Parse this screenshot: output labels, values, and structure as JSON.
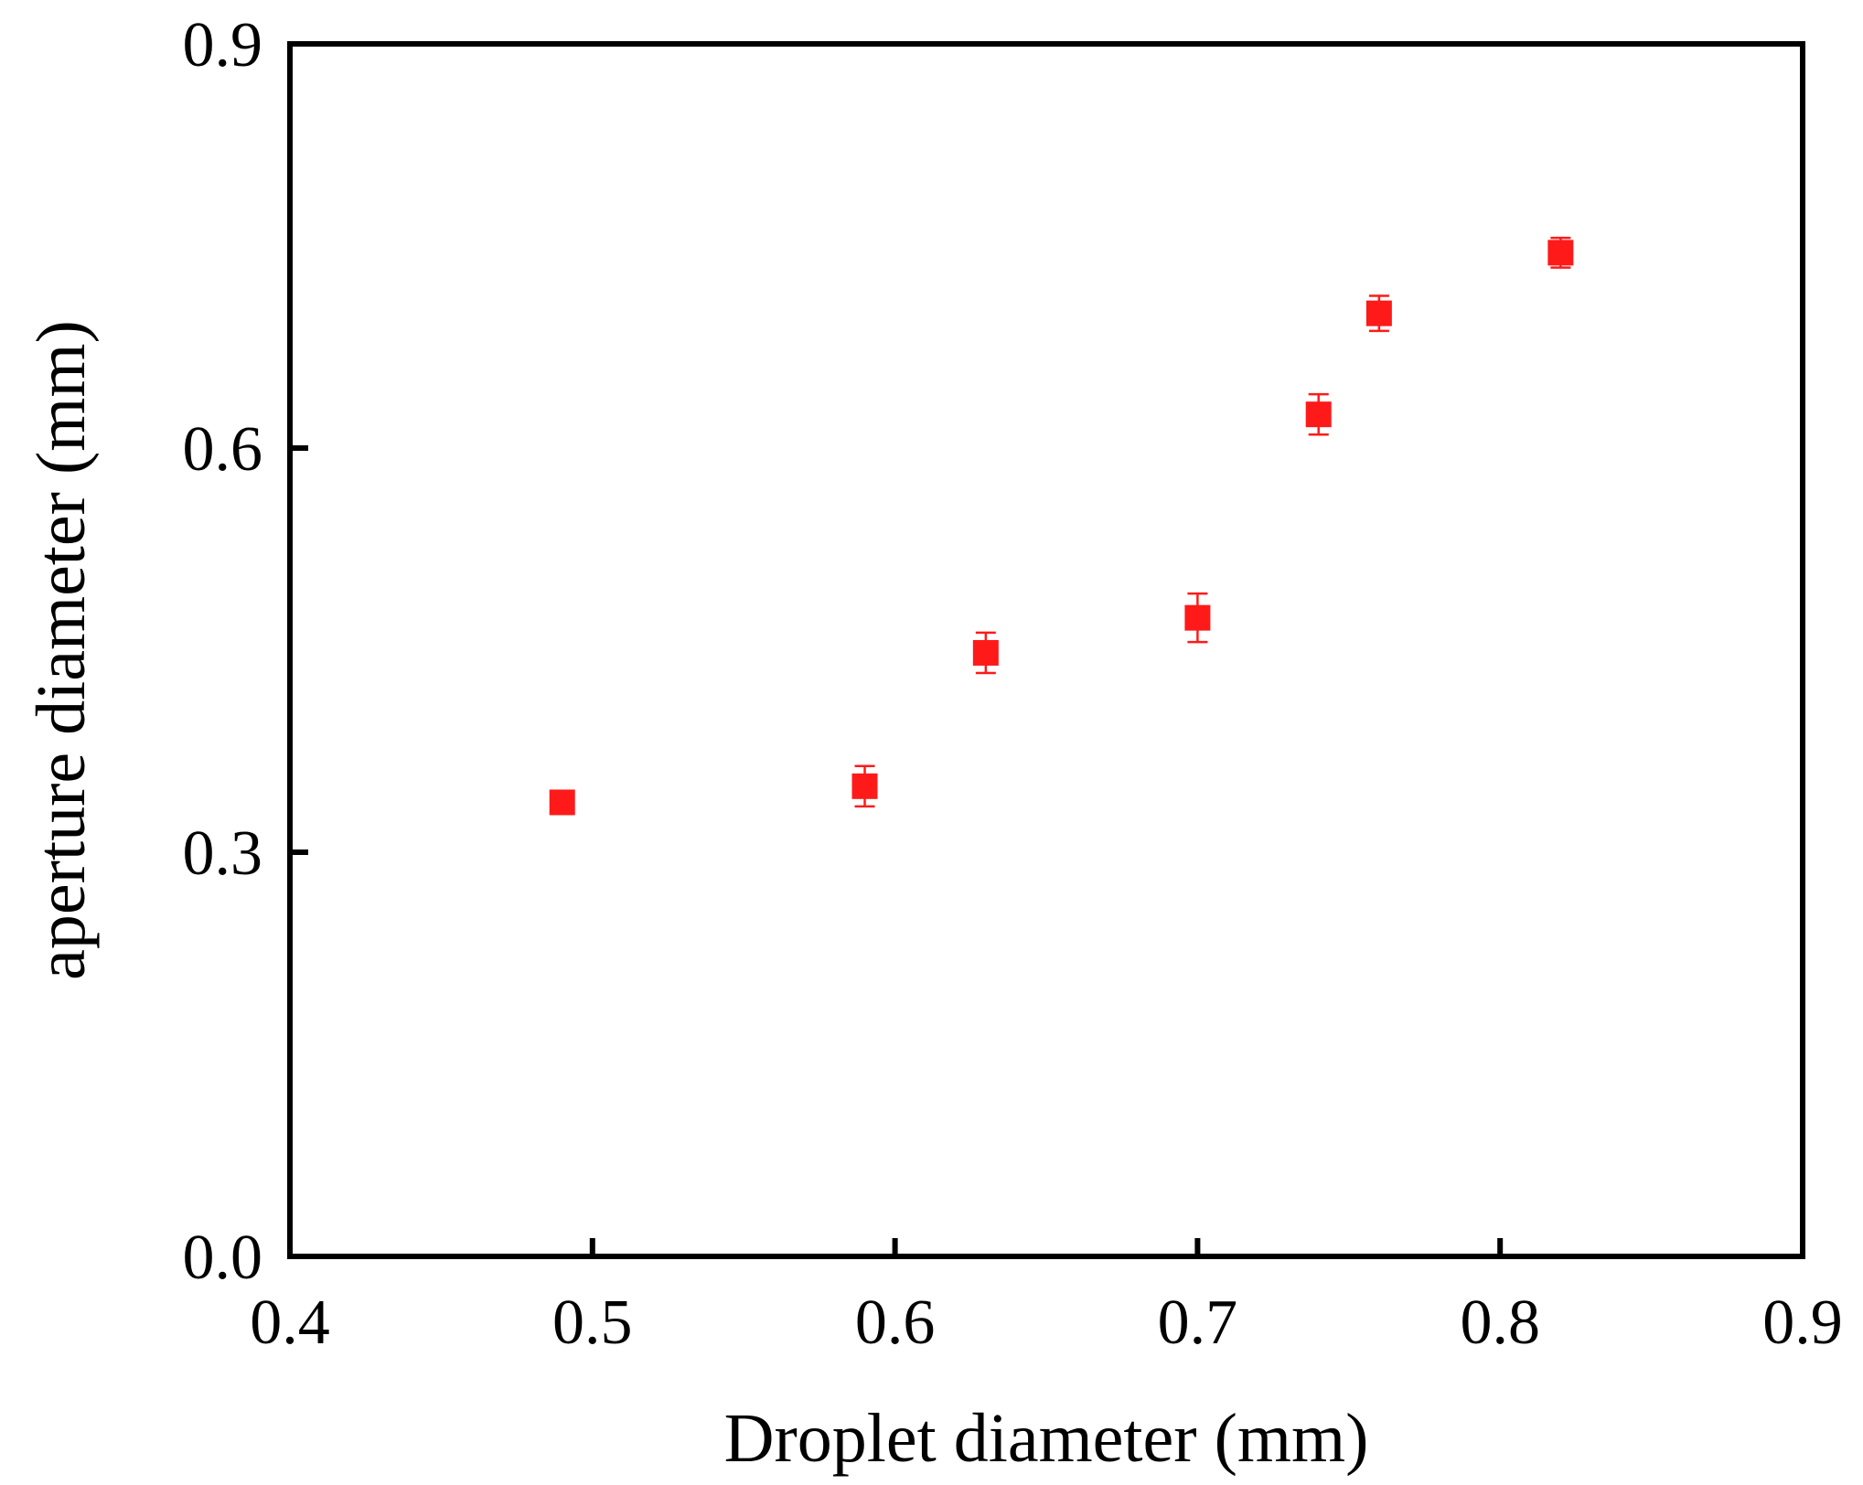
{
  "chart_data": {
    "type": "scatter",
    "title": "",
    "xlabel": "Droplet diameter (mm)",
    "ylabel": "aperture diameter (mm)",
    "xlim": [
      0.4,
      0.9
    ],
    "ylim": [
      0.0,
      0.9
    ],
    "xticks": [
      "0.4",
      "0.5",
      "0.6",
      "0.7",
      "0.8",
      "0.9"
    ],
    "yticks": [
      "0.0",
      "0.3",
      "0.6",
      "0.9"
    ],
    "grid": false,
    "legend": "none",
    "marker": "square",
    "color": "#ff1a1a",
    "series": [
      {
        "x": [
          0.49,
          0.59,
          0.63,
          0.7,
          0.74,
          0.76,
          0.82
        ],
        "y": [
          0.337,
          0.349,
          0.448,
          0.474,
          0.625,
          0.7,
          0.745
        ],
        "yerr": [
          0.007,
          0.015,
          0.015,
          0.018,
          0.015,
          0.013,
          0.011
        ]
      }
    ]
  }
}
